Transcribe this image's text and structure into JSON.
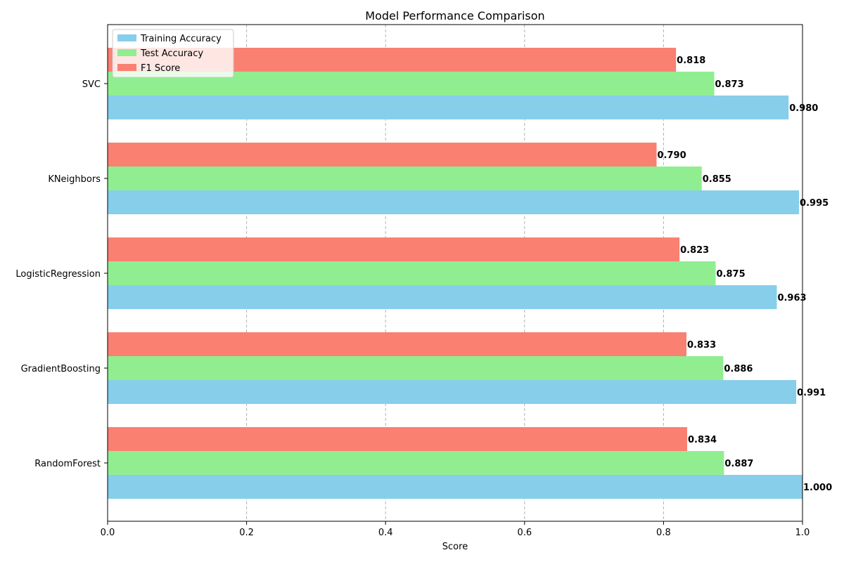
{
  "chart_data": {
    "type": "bar",
    "orientation": "horizontal",
    "title": "Model Performance Comparison",
    "xlabel": "Score",
    "ylabel": "",
    "xlim": [
      0.0,
      1.0
    ],
    "x_ticks": [
      "0.0",
      "0.2",
      "0.4",
      "0.6",
      "0.8",
      "1.0"
    ],
    "grid": "x-dashed",
    "legend_position": "top-left",
    "categories": [
      "RandomForest",
      "GradientBoosting",
      "LogisticRegression",
      "KNeighbors",
      "SVC"
    ],
    "series": [
      {
        "name": "Training Accuracy",
        "color": "#87ceeb",
        "values": [
          1.0,
          0.991,
          0.963,
          0.995,
          0.98
        ],
        "labels": [
          "1.000",
          "0.991",
          "0.963",
          "0.995",
          "0.980"
        ]
      },
      {
        "name": "Test Accuracy",
        "color": "#90ee90",
        "values": [
          0.887,
          0.886,
          0.875,
          0.855,
          0.873
        ],
        "labels": [
          "0.887",
          "0.886",
          "0.875",
          "0.855",
          "0.873"
        ]
      },
      {
        "name": "F1 Score",
        "color": "#fa8072",
        "values": [
          0.834,
          0.833,
          0.823,
          0.79,
          0.818
        ],
        "labels": [
          "0.834",
          "0.833",
          "0.823",
          "0.790",
          "0.818"
        ]
      }
    ]
  }
}
